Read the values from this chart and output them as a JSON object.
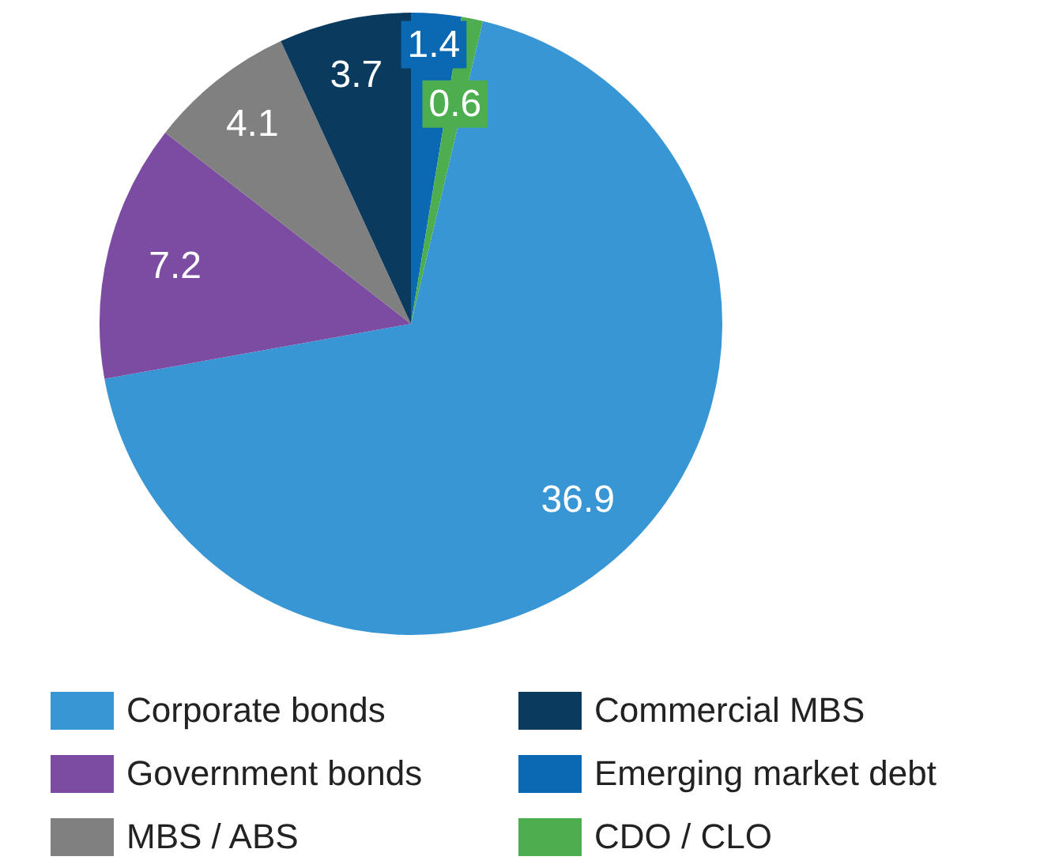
{
  "chart_data": {
    "type": "pie",
    "categories": [
      "Corporate bonds",
      "Government bonds",
      "MBS / ABS",
      "Commercial MBS",
      "Emerging market debt",
      "CDO / CLO"
    ],
    "values": [
      36.9,
      7.2,
      4.1,
      3.7,
      1.4,
      0.6
    ],
    "colors": [
      "#3996d5",
      "#7b4ca2",
      "#808080",
      "#0b3a5f",
      "#0a69b2",
      "#4cae4f"
    ],
    "data_labels": true,
    "legend": "bottom"
  }
}
